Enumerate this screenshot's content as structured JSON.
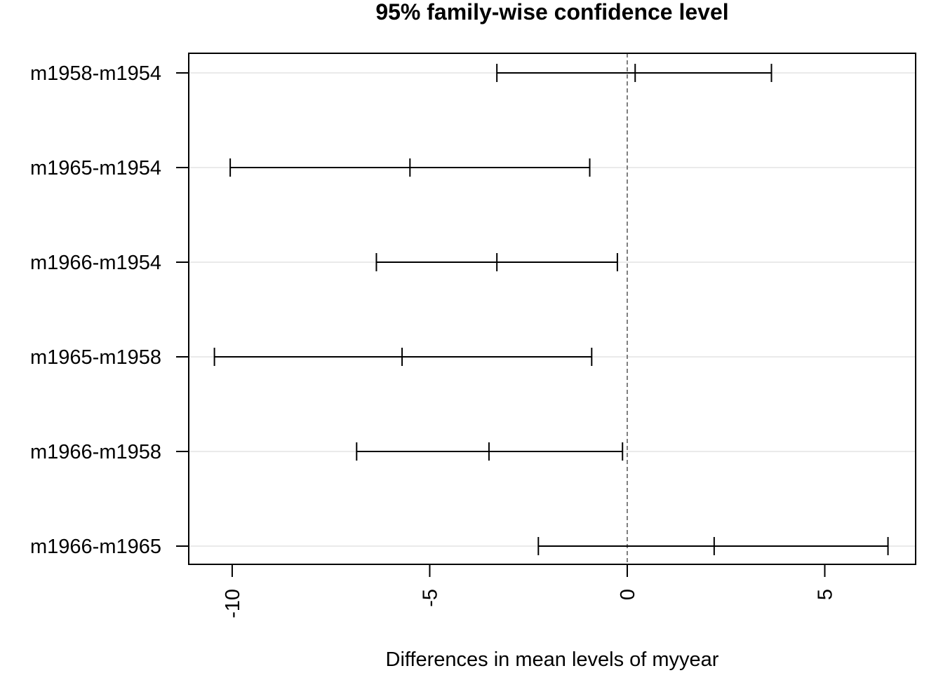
{
  "chart_data": {
    "type": "errorbar",
    "title": "95% family-wise confidence level",
    "xlabel": "Differences in mean levels of myyear",
    "ylabel": "",
    "xlim": [
      -11.1,
      7.3
    ],
    "x_ticks": [
      -10,
      -5,
      0,
      5
    ],
    "x_tick_labels": [
      "-10",
      "-5",
      "0",
      "5"
    ],
    "reference_line": 0,
    "grid": "horizontal",
    "categories": [
      "m1958-m1954",
      "m1965-m1954",
      "m1966-m1954",
      "m1965-m1958",
      "m1966-m1958",
      "m1966-m1965"
    ],
    "series": [
      {
        "lower": [
          -3.3,
          -10.05,
          -6.35,
          -10.45,
          -6.85,
          -2.25
        ],
        "estimate": [
          0.2,
          -5.5,
          -3.3,
          -5.7,
          -3.5,
          2.2
        ],
        "upper": [
          3.65,
          -0.95,
          -0.25,
          -0.9,
          -0.12,
          6.6
        ]
      }
    ]
  }
}
